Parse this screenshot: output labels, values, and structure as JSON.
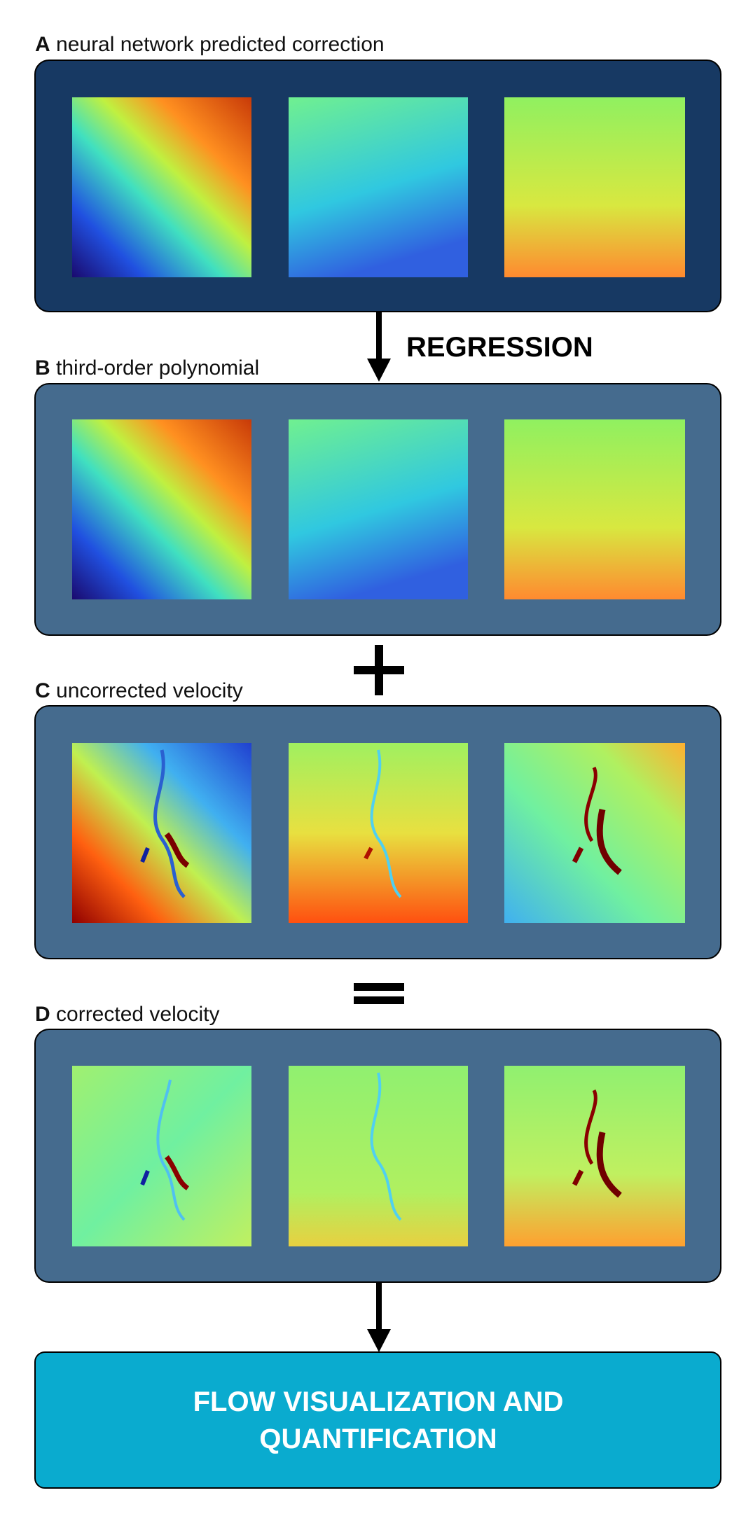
{
  "panels": [
    {
      "letter": "A",
      "label": "neural network predicted correction"
    },
    {
      "letter": "B",
      "label": "third-order polynomial"
    },
    {
      "letter": "C",
      "label": "uncorrected velocity"
    },
    {
      "letter": "D",
      "label": "corrected velocity"
    }
  ],
  "regression_label": "REGRESSION",
  "output": {
    "lines": [
      "FLOW VISUALIZATION AND",
      "QUANTIFICATION"
    ]
  }
}
